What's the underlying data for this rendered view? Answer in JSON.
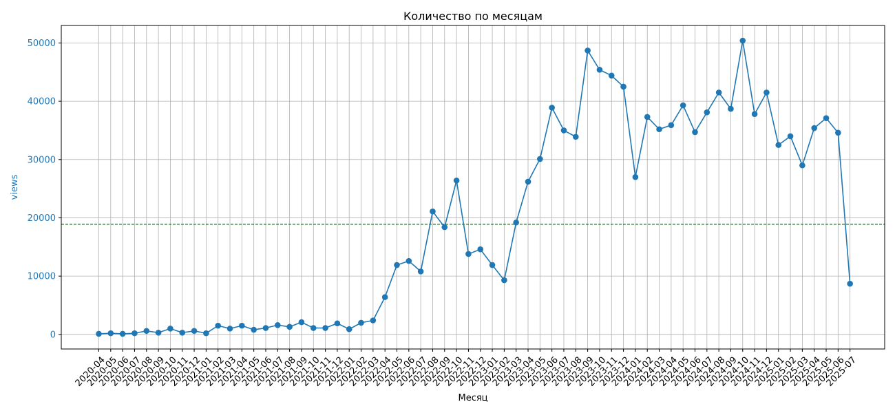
{
  "chart_data": {
    "type": "line",
    "title": "Количество по месяцам",
    "xlabel": "Месяц",
    "ylabel": "views",
    "ylim": [
      -2500,
      53000
    ],
    "yticks": [
      0,
      10000,
      20000,
      30000,
      40000,
      50000
    ],
    "grid": true,
    "reference_line": {
      "y": 18900,
      "style": "dashed",
      "color": "#008000"
    },
    "colors": {
      "series": "#1f77b4",
      "axis_label": "#1f77b4",
      "grid": "#b0b0b0"
    },
    "categories": [
      "2020-04",
      "2020-05",
      "2020-06",
      "2020-07",
      "2020-08",
      "2020-09",
      "2020-10",
      "2020-11",
      "2020-12",
      "2021-01",
      "2021-02",
      "2021-03",
      "2021-04",
      "2021-05",
      "2021-06",
      "2021-07",
      "2021-08",
      "2021-09",
      "2021-10",
      "2021-11",
      "2021-12",
      "2022-01",
      "2022-02",
      "2022-03",
      "2022-04",
      "2022-05",
      "2022-06",
      "2022-07",
      "2022-08",
      "2022-09",
      "2022-10",
      "2022-11",
      "2022-12",
      "2023-01",
      "2023-02",
      "2023-03",
      "2023-04",
      "2023-05",
      "2023-06",
      "2023-07",
      "2023-08",
      "2023-09",
      "2023-10",
      "2023-11",
      "2023-12",
      "2024-01",
      "2024-02",
      "2024-03",
      "2024-04",
      "2024-05",
      "2024-06",
      "2024-07",
      "2024-08",
      "2024-09",
      "2024-10",
      "2024-11",
      "2024-12",
      "2025-01",
      "2025-02",
      "2025-03",
      "2025-04",
      "2025-05",
      "2025-06",
      "2025-07"
    ],
    "series": [
      {
        "values": [
          100,
          200,
          100,
          200,
          600,
          300,
          1000,
          300,
          600,
          200,
          1500,
          1000,
          1500,
          800,
          1100,
          1600,
          1300,
          2100,
          1100,
          1100,
          1900,
          900,
          2000,
          2400,
          6400,
          11900,
          12600,
          10800,
          21100,
          18400,
          26400,
          13800,
          14600,
          11900,
          9300,
          19200,
          26200,
          30100,
          38900,
          35000,
          33900,
          48700,
          45400,
          44400,
          42500,
          27000,
          37300,
          35200,
          35900,
          39300,
          34700,
          38100,
          41500,
          38700,
          50400,
          37800,
          41500,
          32500,
          34000,
          29000,
          35400,
          37100,
          34600,
          8700
        ]
      }
    ]
  }
}
